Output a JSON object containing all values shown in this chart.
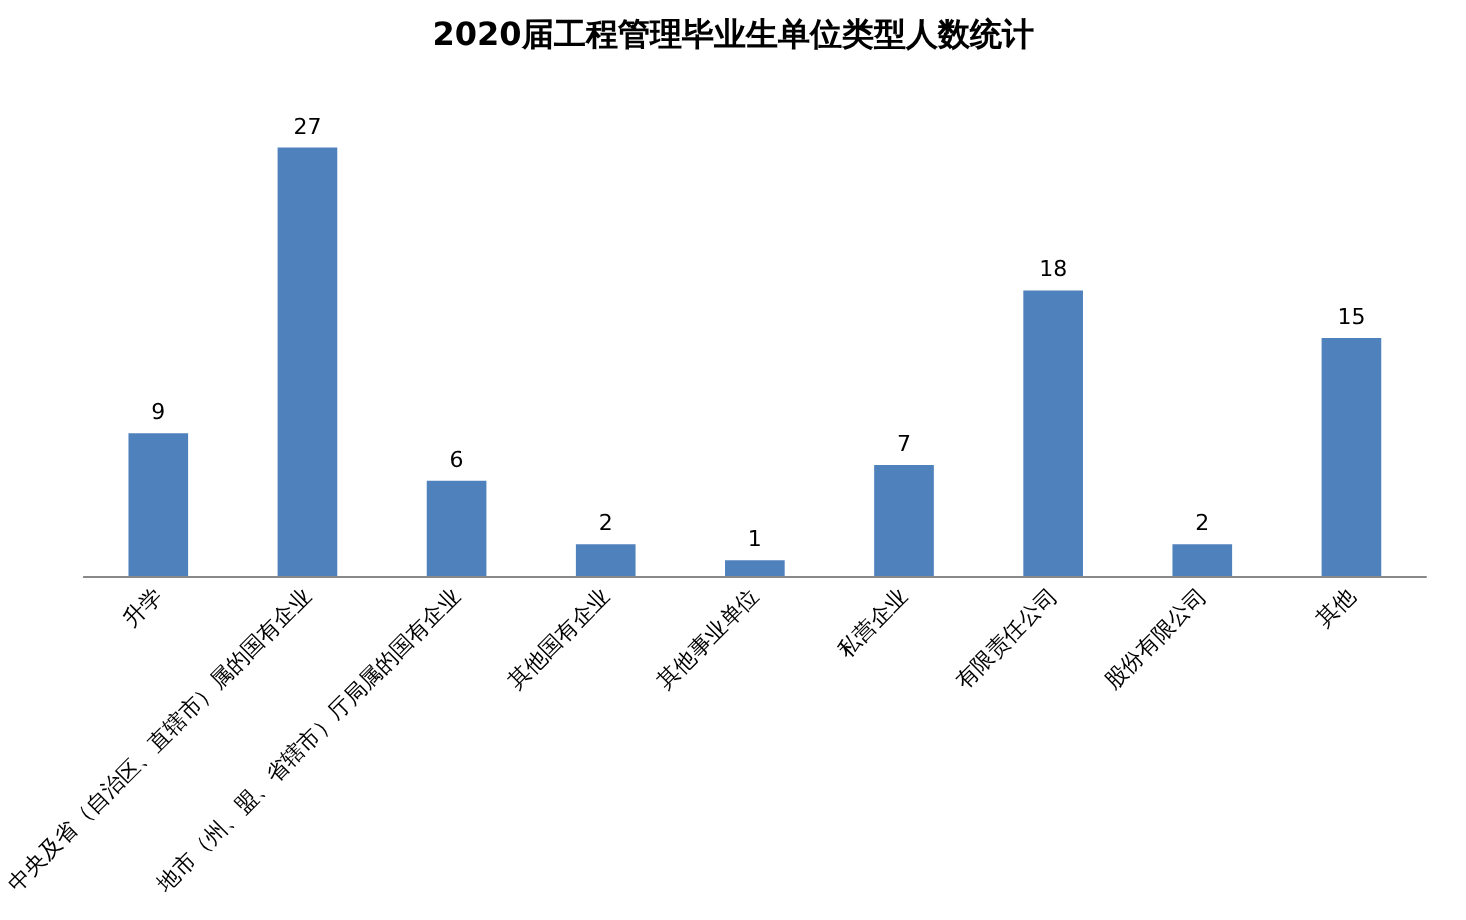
{
  "chart_data": {
    "type": "bar",
    "title": "2020届工程管理毕业生单位类型人数统计",
    "categories": [
      "升学",
      "中央及省（自治区、直辖市）属的国有企业",
      "地市（州、盟、省辖市）厅局属的国有企业",
      "其他国有企业",
      "其他事业单位",
      "私营企业",
      "有限责任公司",
      "股份有限公司",
      "其他"
    ],
    "values": [
      9,
      27,
      6,
      2,
      1,
      7,
      18,
      2,
      15
    ],
    "color": "#4f81bd",
    "data_labels": true
  }
}
